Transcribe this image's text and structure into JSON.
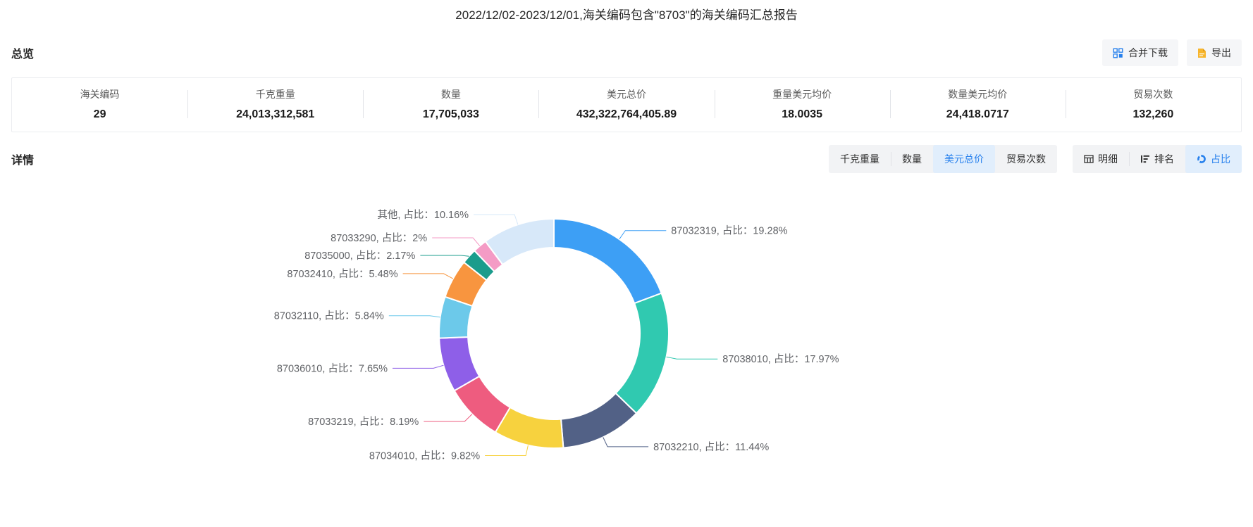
{
  "page": {
    "title": "2022/12/02-2023/12/01,海关编码包含\"8703\"的海关编码汇总报告"
  },
  "overview": {
    "section_title": "总览",
    "actions": {
      "merge_download": "合并下载",
      "export": "导出"
    },
    "stats": [
      {
        "label": "海关编码",
        "value": "29"
      },
      {
        "label": "千克重量",
        "value": "24,013,312,581"
      },
      {
        "label": "数量",
        "value": "17,705,033"
      },
      {
        "label": "美元总价",
        "value": "432,322,764,405.89"
      },
      {
        "label": "重量美元均价",
        "value": "18.0035"
      },
      {
        "label": "数量美元均价",
        "value": "24,418.0717"
      },
      {
        "label": "贸易次数",
        "value": "132,260"
      }
    ]
  },
  "detail": {
    "section_title": "详情",
    "metric_tabs": [
      {
        "label": "千克重量",
        "active": false
      },
      {
        "label": "数量",
        "active": false
      },
      {
        "label": "美元总价",
        "active": true
      },
      {
        "label": "贸易次数",
        "active": false
      }
    ],
    "view_tabs": [
      {
        "label": "明细",
        "icon": "table-icon",
        "active": false
      },
      {
        "label": "排名",
        "icon": "rank-icon",
        "active": false
      },
      {
        "label": "占比",
        "icon": "pie-icon",
        "active": true
      }
    ]
  },
  "chart_data": {
    "type": "pie",
    "subtype": "donut",
    "title": "",
    "legend": "off",
    "label_format": "{name}, 占比：{percent}%",
    "clockwise": true,
    "start_angle_deg": 0,
    "accent_color": "#2680ed",
    "segments": [
      {
        "name": "87032319",
        "percent": 19.28,
        "color": "#3D9FF5",
        "label": "87032319, 占比：19.28%"
      },
      {
        "name": "87038010",
        "percent": 17.97,
        "color": "#30C9B0",
        "label": "87038010, 占比：17.97%"
      },
      {
        "name": "87032210",
        "percent": 11.44,
        "color": "#526186",
        "label": "87032210, 占比：11.44%"
      },
      {
        "name": "87034010",
        "percent": 9.82,
        "color": "#F7D23E",
        "label": "87034010, 占比：9.82%"
      },
      {
        "name": "87033219",
        "percent": 8.19,
        "color": "#EE5C7F",
        "label": "87033219, 占比：8.19%"
      },
      {
        "name": "87036010",
        "percent": 7.65,
        "color": "#8E5FE8",
        "label": "87036010, 占比：7.65%"
      },
      {
        "name": "87032110",
        "percent": 5.84,
        "color": "#6CC9EA",
        "label": "87032110, 占比：5.84%"
      },
      {
        "name": "87032410",
        "percent": 5.48,
        "color": "#F8953F",
        "label": "87032410, 占比：5.48%"
      },
      {
        "name": "87035000",
        "percent": 2.17,
        "color": "#1B9C8C",
        "label": "87035000, 占比：2.17%"
      },
      {
        "name": "87033290",
        "percent": 2,
        "color": "#F49BC5",
        "label": "87033290, 占比：2%"
      },
      {
        "name": "其他",
        "percent": 10.16,
        "color": "#D7E8F9",
        "label": "其他, 占比：10.16%"
      }
    ]
  }
}
